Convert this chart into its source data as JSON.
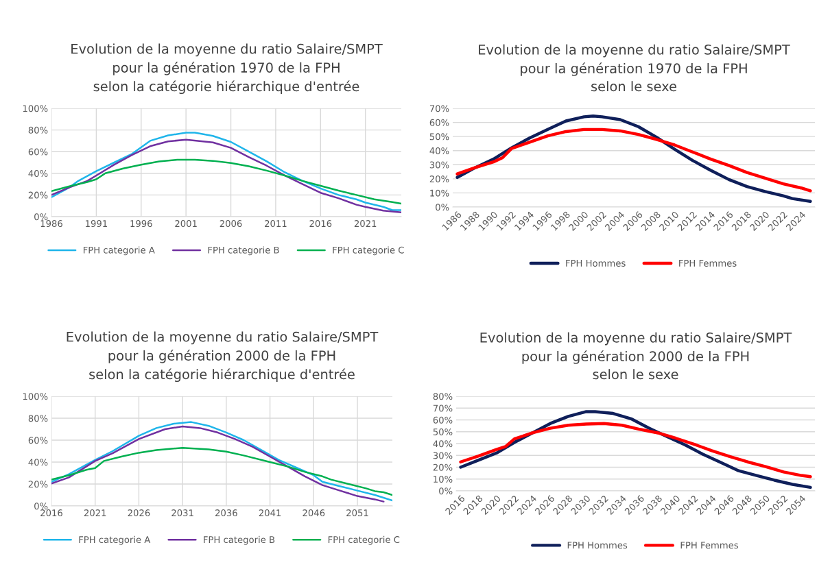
{
  "chart_data": [
    {
      "type": "line",
      "title": "Evolution de la moyenne du ratio Salaire/SMPT\npour la génération 1970 de la FPH\nselon la catégorie hiérarchique d'entrée",
      "xlim": [
        1986,
        2025
      ],
      "xticks": [
        1986,
        1991,
        1996,
        2001,
        2006,
        2011,
        2016,
        2021
      ],
      "ylim": [
        0,
        100
      ],
      "yticks": [
        {
          "value": 0,
          "label": "0%"
        },
        {
          "value": 20,
          "label": "20%"
        },
        {
          "value": 40,
          "label": "40%"
        },
        {
          "value": 60,
          "label": "60%"
        },
        {
          "value": 80,
          "label": "80%"
        },
        {
          "value": 100,
          "label": "100%"
        }
      ],
      "grid": true,
      "legend": "bottom",
      "series": [
        {
          "name": "FPH categorie A",
          "color": "#1fb5ea",
          "x": [
            1986,
            1988,
            1989,
            1991,
            1993,
            1995,
            1997,
            1999,
            2001,
            2002,
            2004,
            2006,
            2008,
            2010,
            2012,
            2014,
            2016,
            2018,
            2020,
            2021,
            2023,
            2024,
            2025
          ],
          "values": [
            18,
            27,
            33,
            42,
            50,
            58,
            70,
            75,
            77.5,
            77.5,
            74.5,
            69,
            60,
            51,
            41,
            33,
            26,
            20,
            16,
            13,
            9,
            6,
            6
          ]
        },
        {
          "name": "FPH categorie B",
          "color": "#7030a0",
          "x": [
            1986,
            1988,
            1990,
            1991,
            1993,
            1995,
            1997,
            1999,
            2001,
            2004,
            2006,
            2008,
            2010,
            2012,
            2014,
            2016,
            2018,
            2020,
            2021,
            2023,
            2025
          ],
          "values": [
            20,
            27,
            33,
            38,
            48,
            57,
            65,
            69.5,
            71,
            68.5,
            63.5,
            55,
            47,
            38,
            30,
            22,
            17,
            11,
            9,
            5.5,
            4
          ]
        },
        {
          "name": "FPH categorie C",
          "color": "#00b050",
          "x": [
            1986,
            1988,
            1990,
            1991,
            1992,
            1994,
            1996,
            1998,
            2000,
            2002,
            2004,
            2006,
            2008,
            2010,
            2012,
            2014,
            2016,
            2018,
            2020,
            2022,
            2024,
            2025
          ],
          "values": [
            23.5,
            28,
            32,
            34.5,
            40,
            44.5,
            48,
            51,
            52.5,
            52.5,
            51.5,
            49.5,
            46.5,
            42.5,
            38,
            33,
            28.5,
            24,
            20,
            16,
            13.5,
            12
          ]
        }
      ]
    },
    {
      "type": "line",
      "title": "Evolution de la moyenne du ratio Salaire/SMPT\npour la génération 1970 de la FPH\nselon le sexe",
      "xlim": [
        1985.5,
        2025.5
      ],
      "xticks": [
        1986,
        1988,
        1990,
        1992,
        1994,
        1996,
        1998,
        2000,
        2002,
        2004,
        2006,
        2008,
        2010,
        2012,
        2014,
        2016,
        2018,
        2020,
        2022,
        2024
      ],
      "ylim": [
        0,
        70
      ],
      "yticks": [
        {
          "value": 0,
          "label": "0%"
        },
        {
          "value": 10,
          "label": "10%"
        },
        {
          "value": 20,
          "label": "20%"
        },
        {
          "value": 30,
          "label": "30%"
        },
        {
          "value": 40,
          "label": "40%"
        },
        {
          "value": 50,
          "label": "50%"
        },
        {
          "value": 60,
          "label": "60%"
        },
        {
          "value": 70,
          "label": "70%"
        }
      ],
      "grid": "y",
      "legend": "bottom",
      "series": [
        {
          "name": "FPH Hommes",
          "color": "#0f1f5a",
          "x": [
            1986,
            1988,
            1990,
            1992,
            1994,
            1996,
            1998,
            2000,
            2001,
            2002,
            2004,
            2006,
            2008,
            2010,
            2012,
            2014,
            2016,
            2018,
            2020,
            2022,
            2023,
            2025
          ],
          "values": [
            21,
            28,
            34,
            42,
            49,
            55,
            61,
            64,
            64.5,
            64,
            62,
            57,
            49.5,
            41,
            33,
            26,
            19.5,
            14.5,
            11,
            8,
            6,
            4
          ]
        },
        {
          "name": "FPH Femmes",
          "color": "#ff0000",
          "x": [
            1986,
            1988,
            1990,
            1991,
            1992,
            1994,
            1996,
            1998,
            2000,
            2002,
            2004,
            2006,
            2008,
            2010,
            2012,
            2014,
            2016,
            2018,
            2020,
            2022,
            2024,
            2025
          ],
          "values": [
            23.5,
            28,
            32,
            35,
            41.5,
            46,
            50.5,
            53.5,
            55,
            55,
            54,
            51.5,
            48,
            44,
            39,
            34,
            29.5,
            24.5,
            20.5,
            16.5,
            13.5,
            11.5
          ]
        }
      ]
    },
    {
      "type": "line",
      "title": "Evolution de la moyenne du ratio Salaire/SMPT\npour la génération 2000 de la FPH\nselon la catégorie hiérarchique d'entrée",
      "xlim": [
        2016,
        2055
      ],
      "xticks": [
        2016,
        2021,
        2026,
        2031,
        2036,
        2041,
        2046,
        2051
      ],
      "ylim": [
        0,
        100
      ],
      "yticks": [
        {
          "value": 0,
          "label": "0%"
        },
        {
          "value": 20,
          "label": "20%"
        },
        {
          "value": 40,
          "label": "40%"
        },
        {
          "value": 60,
          "label": "60%"
        },
        {
          "value": 80,
          "label": "80%"
        },
        {
          "value": 100,
          "label": "100%"
        }
      ],
      "grid": true,
      "legend": "bottom",
      "series": [
        {
          "name": "FPH categorie A",
          "color": "#1fb5ea",
          "x": [
            2016,
            2018,
            2021,
            2023,
            2026,
            2028,
            2030,
            2032,
            2034,
            2036,
            2038,
            2040,
            2042,
            2044,
            2046,
            2047,
            2049,
            2051,
            2053,
            2055
          ],
          "values": [
            22,
            29,
            42,
            50,
            64,
            71,
            75,
            76.5,
            73,
            67,
            60,
            51,
            42,
            35,
            28,
            22,
            18,
            14,
            10,
            5
          ]
        },
        {
          "name": "FPH categorie B",
          "color": "#7030a0",
          "x": [
            2016,
            2018,
            2021,
            2023,
            2026,
            2029,
            2031,
            2033,
            2035,
            2037,
            2039,
            2041,
            2043,
            2045,
            2047,
            2049,
            2051,
            2053,
            2054
          ],
          "values": [
            20.5,
            26,
            41,
            48,
            61,
            70,
            72.5,
            71,
            67,
            61,
            54,
            45,
            36,
            27,
            19,
            14,
            9,
            6,
            4
          ]
        },
        {
          "name": "FPH categorie C",
          "color": "#00b050",
          "x": [
            2016,
            2018,
            2020,
            2021,
            2022,
            2024,
            2026,
            2028,
            2031,
            2034,
            2036,
            2038,
            2041,
            2043,
            2045,
            2047,
            2048,
            2050,
            2052,
            2053,
            2054,
            2055
          ],
          "values": [
            24,
            28,
            33,
            34.5,
            41,
            45,
            48.5,
            51,
            53,
            51.5,
            49.5,
            46,
            40,
            36,
            31,
            27,
            24,
            20,
            16,
            13.5,
            12.5,
            10
          ]
        }
      ]
    },
    {
      "type": "line",
      "title": "Evolution de la moyenne du ratio Salaire/SMPT\npour la génération 2000 de la FPH\nselon le sexe",
      "xlim": [
        2015.5,
        2055.5
      ],
      "xticks": [
        2016,
        2018,
        2020,
        2022,
        2024,
        2026,
        2028,
        2030,
        2032,
        2034,
        2036,
        2038,
        2040,
        2042,
        2044,
        2046,
        2048,
        2050,
        2052,
        2054
      ],
      "ylim": [
        0,
        80
      ],
      "yticks": [
        {
          "value": 0,
          "label": "0%"
        },
        {
          "value": 10,
          "label": "10%"
        },
        {
          "value": 20,
          "label": "20%"
        },
        {
          "value": 30,
          "label": "30%"
        },
        {
          "value": 40,
          "label": "40%"
        },
        {
          "value": 50,
          "label": "50%"
        },
        {
          "value": 60,
          "label": "60%"
        },
        {
          "value": 70,
          "label": "70%"
        },
        {
          "value": 80,
          "label": "80%"
        }
      ],
      "grid": "y",
      "legend": "bottom",
      "series": [
        {
          "name": "FPH Hommes",
          "color": "#0f1f5a",
          "x": [
            2016,
            2018,
            2020,
            2021,
            2022,
            2024,
            2026,
            2028,
            2030,
            2031,
            2033,
            2035,
            2037,
            2039,
            2041,
            2043,
            2045,
            2047,
            2049,
            2051,
            2053,
            2055
          ],
          "values": [
            20,
            26,
            32,
            36.5,
            41,
            49,
            57,
            63,
            67,
            67,
            65.5,
            61,
            53,
            46,
            39,
            31,
            24,
            17,
            13,
            9,
            5.5,
            3
          ]
        },
        {
          "name": "FPH Femmes",
          "color": "#ff0000",
          "x": [
            2016,
            2018,
            2020,
            2021,
            2022,
            2024,
            2026,
            2028,
            2030,
            2032,
            2034,
            2036,
            2038,
            2040,
            2042,
            2044,
            2046,
            2048,
            2050,
            2052,
            2054,
            2055
          ],
          "values": [
            24.5,
            29.5,
            35,
            37.5,
            44,
            49,
            53,
            55.5,
            56.5,
            57,
            55.5,
            52,
            49,
            44.5,
            39.5,
            34,
            29,
            24.5,
            20.5,
            16,
            13,
            12
          ]
        }
      ]
    }
  ]
}
